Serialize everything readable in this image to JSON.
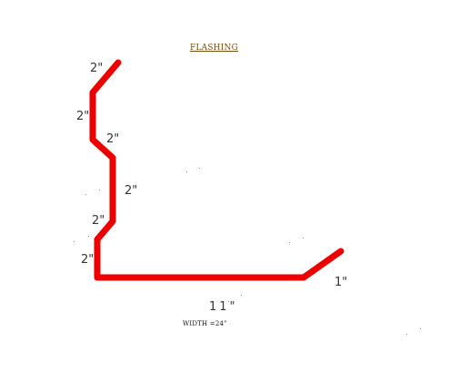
{
  "diagram": {
    "title": "FLASHING",
    "flashing_color": "#ee0000",
    "segments": [
      {
        "label": "2\""
      },
      {
        "label": "2\""
      },
      {
        "label": "2\""
      },
      {
        "label": "2\""
      },
      {
        "label": "2\""
      },
      {
        "label": "2\""
      },
      {
        "label": "11\""
      },
      {
        "label": "1\""
      }
    ],
    "total_width_note": "WIDTH =24\""
  }
}
